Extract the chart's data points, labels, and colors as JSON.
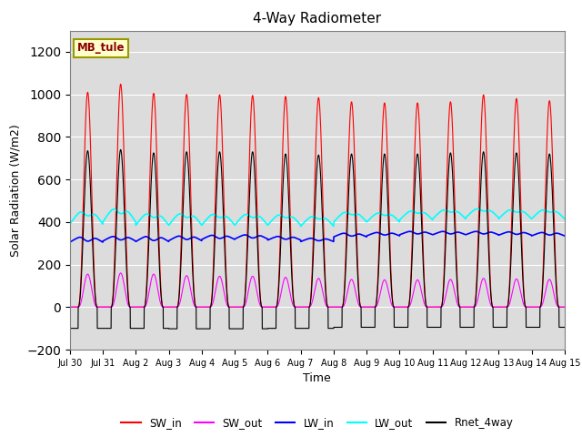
{
  "title": "4-Way Radiometer",
  "xlabel": "Time",
  "ylabel": "Solar Radiation (W/m2)",
  "ylim": [
    -200,
    1300
  ],
  "yticks": [
    -200,
    0,
    200,
    400,
    600,
    800,
    1000,
    1200
  ],
  "num_days": 15,
  "points_per_day": 480,
  "colors": {
    "SW_in": "#ff0000",
    "SW_out": "#ff00ff",
    "LW_in": "#0000ff",
    "LW_out": "#00ffff",
    "Rnet_4way": "#000000"
  },
  "legend_labels": [
    "SW_in",
    "SW_out",
    "LW_in",
    "LW_out",
    "Rnet_4way"
  ],
  "station_label": "MB_tule",
  "SW_in_peak": [
    1010,
    1048,
    1005,
    1000,
    998,
    995,
    990,
    985,
    965,
    960,
    960,
    965,
    998,
    980,
    970
  ],
  "SW_out_peak": [
    155,
    160,
    155,
    148,
    145,
    145,
    140,
    135,
    130,
    128,
    128,
    130,
    135,
    132,
    130
  ],
  "LW_in_base": [
    305,
    310,
    308,
    312,
    318,
    320,
    315,
    308,
    330,
    335,
    340,
    340,
    340,
    338,
    335
  ],
  "LW_in_daytime_dip": [
    25,
    22,
    25,
    22,
    20,
    20,
    18,
    16,
    18,
    16,
    16,
    16,
    16,
    16,
    16
  ],
  "LW_in_daytime_add": [
    30,
    28,
    30,
    28,
    25,
    25,
    22,
    20,
    22,
    20,
    20,
    20,
    20,
    20,
    20
  ],
  "LW_out_base": [
    390,
    400,
    385,
    385,
    385,
    385,
    385,
    380,
    400,
    400,
    410,
    415,
    420,
    415,
    415
  ],
  "LW_out_daytime_add": [
    70,
    75,
    65,
    65,
    62,
    62,
    58,
    55,
    55,
    50,
    50,
    50,
    50,
    50,
    50
  ],
  "LW_out_daytime_dip": [
    30,
    35,
    28,
    28,
    25,
    25,
    22,
    20,
    20,
    18,
    18,
    18,
    18,
    18,
    18
  ],
  "Rnet_peak": [
    735,
    740,
    725,
    730,
    730,
    730,
    720,
    715,
    720,
    720,
    720,
    725,
    730,
    725,
    720
  ],
  "Rnet_night": [
    -100,
    -100,
    -100,
    -102,
    -102,
    -102,
    -100,
    -100,
    -95,
    -95,
    -95,
    -95,
    -95,
    -95,
    -95
  ]
}
